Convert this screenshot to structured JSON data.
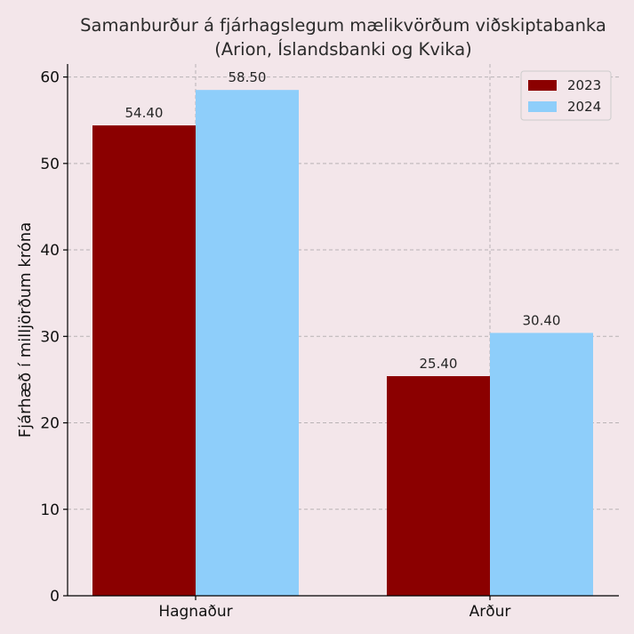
{
  "chart_data": {
    "type": "bar",
    "title": "Samanburður á fjárhagslegum mælikvörðum viðskiptabanka",
    "subtitle": "(Arion, Íslandsbanki og Kvika)",
    "xlabel": "",
    "ylabel": "Fjárhæð í milljörðum króna",
    "categories": [
      "Hagnaður",
      "Arður"
    ],
    "series": [
      {
        "name": "2023",
        "values": [
          54.4,
          25.4
        ],
        "labels": [
          "54.40",
          "25.40"
        ],
        "color": "#8b0000"
      },
      {
        "name": "2024",
        "values": [
          58.5,
          30.4
        ],
        "labels": [
          "58.50",
          "30.40"
        ],
        "color": "#8ecefa"
      }
    ],
    "ylim": [
      0,
      61.5
    ],
    "yticks": [
      0,
      10,
      20,
      30,
      40,
      50,
      60
    ],
    "grid": true,
    "legend_position": "top-right"
  }
}
